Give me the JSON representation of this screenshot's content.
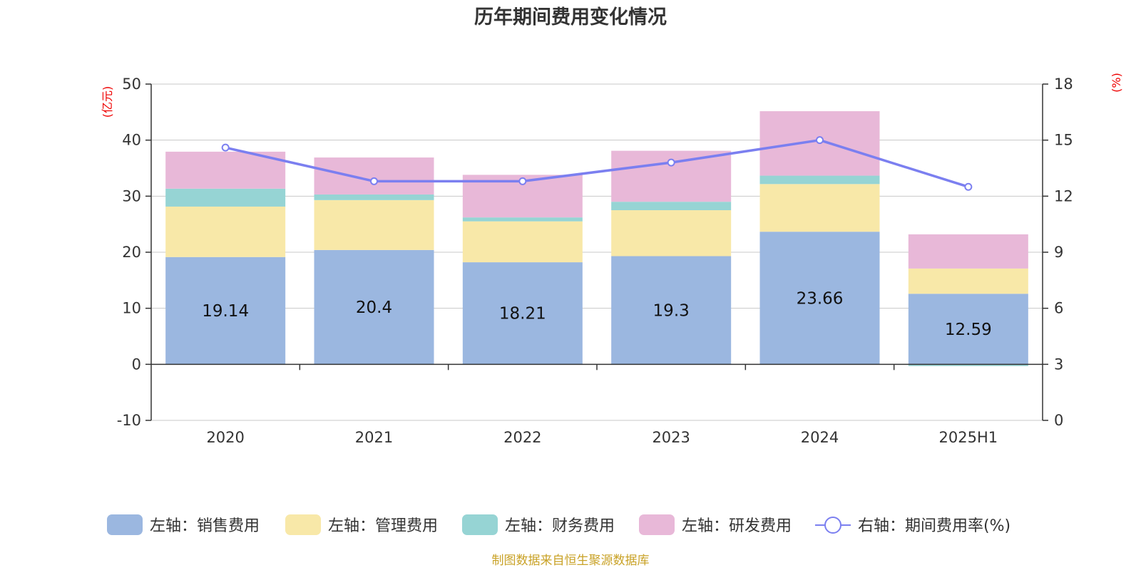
{
  "title": "历年期间费用变化情况",
  "source": "制图数据来自恒生聚源数据库",
  "chart_data": {
    "type": "bar",
    "stacked": true,
    "categories": [
      "2020",
      "2021",
      "2022",
      "2023",
      "2024",
      "2025H1"
    ],
    "left_axis": {
      "unit": "(亿元)",
      "ticks": [
        "50",
        "40",
        "30",
        "20",
        "10",
        "0",
        "-10"
      ],
      "range": [
        -10,
        50
      ]
    },
    "right_axis": {
      "unit": "(%)",
      "ticks": [
        "18",
        "15",
        "12",
        "9",
        "6",
        "3",
        "0"
      ],
      "range": [
        0,
        18
      ]
    },
    "series": [
      {
        "name": "左轴：销售费用",
        "color": "#9bb7e0",
        "values": [
          19.14,
          20.4,
          18.21,
          19.3,
          23.66,
          12.59
        ],
        "labels": [
          "19.14",
          "20.4",
          "18.21",
          "19.3",
          "23.66",
          "12.59"
        ]
      },
      {
        "name": "左轴：管理费用",
        "color": "#f8e8a8",
        "values": [
          9.0,
          8.9,
          7.3,
          8.2,
          8.5,
          4.5
        ]
      },
      {
        "name": "左轴：财务费用",
        "color": "#96d4d4",
        "values": [
          3.2,
          1.0,
          0.7,
          1.5,
          1.5,
          -0.3
        ]
      },
      {
        "name": "左轴：研发费用",
        "color": "#e8b8d8",
        "values": [
          6.6,
          6.6,
          7.6,
          9.1,
          11.5,
          6.1
        ]
      }
    ],
    "line": {
      "name": "右轴：期间费用率(%)",
      "color": "#7b7ff0",
      "values": [
        14.6,
        12.8,
        12.8,
        13.8,
        15.0,
        12.5
      ]
    },
    "grid": true,
    "legend_position": "bottom"
  }
}
